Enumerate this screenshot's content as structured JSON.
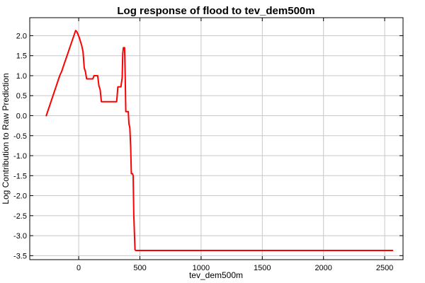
{
  "chart_data": {
    "type": "line",
    "title": "Log response of flood to tev_dem500m",
    "xlabel": "tev_dem500m",
    "ylabel": "Log Contribution to Raw Prediction",
    "xlim": [
      -400,
      2650
    ],
    "ylim": [
      -3.6,
      2.45
    ],
    "xticks": [
      0,
      500,
      1000,
      1500,
      2000,
      2500
    ],
    "xtick_labels": [
      "0",
      "500",
      "1000",
      "1500",
      "2000",
      "2500"
    ],
    "yticks": [
      2.0,
      1.5,
      1.0,
      0.5,
      0.0,
      -0.5,
      -1.0,
      -1.5,
      -2.0,
      -2.5,
      -3.0,
      -3.5
    ],
    "ytick_labels": [
      "2.0",
      "1.5",
      "1.0",
      "0.5",
      "0.0",
      "-0.5",
      "-1.0",
      "-1.5",
      "-2.0",
      "-2.5",
      "-3.0",
      "-3.5"
    ],
    "grid": true,
    "colors": {
      "line": "#ff0000",
      "grid": "#c8c8c8",
      "frame": "#000000"
    },
    "series": [
      {
        "x": [
          -265,
          -155,
          -140,
          -25,
          -15,
          5,
          15,
          25,
          35,
          45,
          55,
          65,
          80,
          115,
          125,
          155,
          165,
          175,
          185,
          200,
          310,
          320,
          345,
          355,
          360,
          365,
          375,
          380,
          385,
          395,
          405,
          410,
          418,
          425,
          430,
          440,
          445,
          450,
          460,
          465,
          2565
        ],
        "y": [
          0.0,
          1.0,
          1.1,
          2.13,
          2.1,
          1.95,
          1.85,
          1.75,
          1.6,
          1.2,
          1.1,
          0.92,
          0.92,
          0.92,
          1.0,
          1.0,
          0.75,
          0.65,
          0.35,
          0.35,
          0.35,
          0.72,
          0.72,
          0.95,
          1.55,
          1.7,
          1.7,
          0.95,
          0.1,
          0.1,
          0.1,
          -0.2,
          -0.3,
          -0.8,
          -1.45,
          -1.45,
          -1.5,
          -2.5,
          -3.35,
          -3.37,
          -3.37
        ]
      }
    ]
  }
}
